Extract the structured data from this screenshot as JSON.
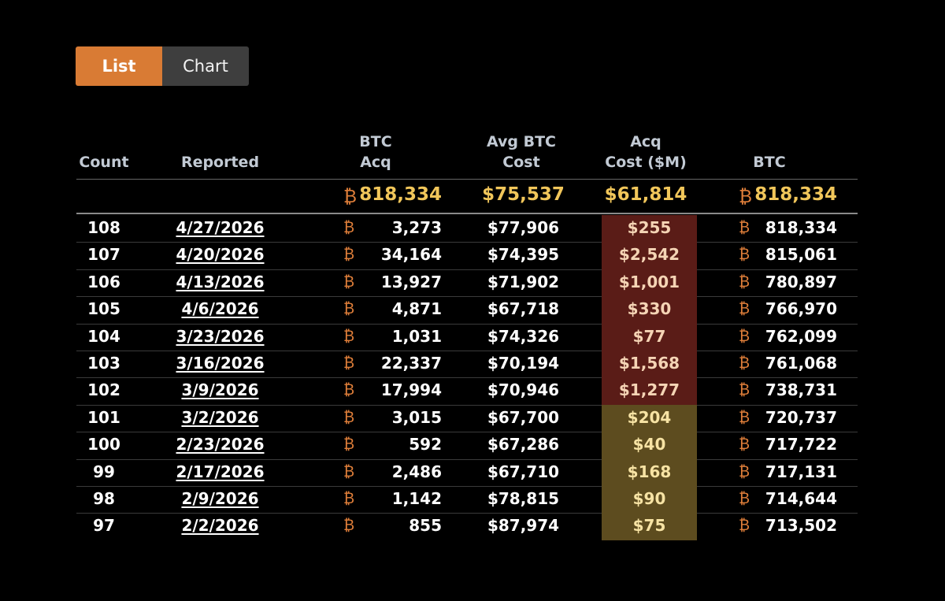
{
  "view_toggle": {
    "list_label": "List",
    "chart_label": "Chart",
    "active": "List"
  },
  "colors": {
    "accent": "#d97b34",
    "total": "#f1c65a",
    "btc_symbol": "#e07f3a",
    "recent_highlight": "#5a1c17",
    "older_highlight": "#5d4c1f"
  },
  "table": {
    "headers": {
      "count": "Count",
      "reported": "Reported",
      "btc_acq_1": "BTC",
      "btc_acq_2": "Acq",
      "avg_cost_1": "Avg BTC",
      "avg_cost_2": "Cost",
      "acq_cost_1": "Acq",
      "acq_cost_2": "Cost ($M)",
      "btc": "BTC"
    },
    "btc_symbol": "₿",
    "totals": {
      "btc_acq": "818,334",
      "avg_cost": "$75,537",
      "acq_cost": "$61,814",
      "btc": "818,334"
    },
    "rows": [
      {
        "count": "108",
        "reported": "4/27/2026",
        "btc_acq": "3,273",
        "avg_cost": "$77,906",
        "acq_cost": "$255",
        "btc": "818,334",
        "highlight": "red"
      },
      {
        "count": "107",
        "reported": "4/20/2026",
        "btc_acq": "34,164",
        "avg_cost": "$74,395",
        "acq_cost": "$2,542",
        "btc": "815,061",
        "highlight": "red"
      },
      {
        "count": "106",
        "reported": "4/13/2026",
        "btc_acq": "13,927",
        "avg_cost": "$71,902",
        "acq_cost": "$1,001",
        "btc": "780,897",
        "highlight": "red"
      },
      {
        "count": "105",
        "reported": "4/6/2026",
        "btc_acq": "4,871",
        "avg_cost": "$67,718",
        "acq_cost": "$330",
        "btc": "766,970",
        "highlight": "red"
      },
      {
        "count": "104",
        "reported": "3/23/2026",
        "btc_acq": "1,031",
        "avg_cost": "$74,326",
        "acq_cost": "$77",
        "btc": "762,099",
        "highlight": "red"
      },
      {
        "count": "103",
        "reported": "3/16/2026",
        "btc_acq": "22,337",
        "avg_cost": "$70,194",
        "acq_cost": "$1,568",
        "btc": "761,068",
        "highlight": "red"
      },
      {
        "count": "102",
        "reported": "3/9/2026",
        "btc_acq": "17,994",
        "avg_cost": "$70,946",
        "acq_cost": "$1,277",
        "btc": "738,731",
        "highlight": "red"
      },
      {
        "count": "101",
        "reported": "3/2/2026",
        "btc_acq": "3,015",
        "avg_cost": "$67,700",
        "acq_cost": "$204",
        "btc": "720,737",
        "highlight": "yellow"
      },
      {
        "count": "100",
        "reported": "2/23/2026",
        "btc_acq": "592",
        "avg_cost": "$67,286",
        "acq_cost": "$40",
        "btc": "717,722",
        "highlight": "yellow"
      },
      {
        "count": "99",
        "reported": "2/17/2026",
        "btc_acq": "2,486",
        "avg_cost": "$67,710",
        "acq_cost": "$168",
        "btc": "717,131",
        "highlight": "yellow"
      },
      {
        "count": "98",
        "reported": "2/9/2026",
        "btc_acq": "1,142",
        "avg_cost": "$78,815",
        "acq_cost": "$90",
        "btc": "714,644",
        "highlight": "yellow"
      },
      {
        "count": "97",
        "reported": "2/2/2026",
        "btc_acq": "855",
        "avg_cost": "$87,974",
        "acq_cost": "$75",
        "btc": "713,502",
        "highlight": "yellow"
      }
    ]
  }
}
